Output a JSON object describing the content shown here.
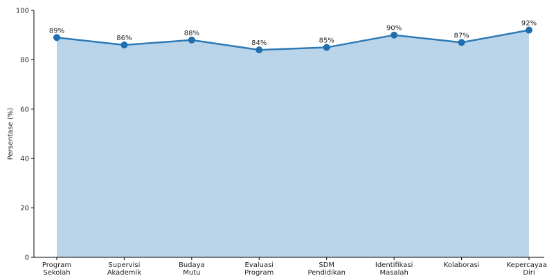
{
  "chart_data": {
    "type": "area",
    "categories": [
      [
        "Program",
        "Sekolah"
      ],
      [
        "Supervisi",
        "Akademik"
      ],
      [
        "Budaya",
        "Mutu"
      ],
      [
        "Evaluasi",
        "Program"
      ],
      [
        "SDM",
        "Pendidikan"
      ],
      [
        "Identifikasi",
        "Masalah"
      ],
      [
        "Kolaborasi"
      ],
      [
        "Kepercayaan",
        "Diri"
      ]
    ],
    "values": [
      89,
      86,
      88,
      84,
      85,
      90,
      87,
      92
    ],
    "data_labels": [
      "89%",
      "86%",
      "88%",
      "84%",
      "85%",
      "90%",
      "87%",
      "92%"
    ],
    "ylabel": "Persentase (%)",
    "xlabel": "",
    "ylim": [
      0,
      100
    ],
    "yticks": [
      "0",
      "20",
      "40",
      "60",
      "80",
      "100"
    ],
    "grid": false,
    "legend": "none",
    "colors": {
      "line": "#2e7ab6",
      "marker": "#1f6fb0",
      "fill": "#bad5ea"
    }
  }
}
